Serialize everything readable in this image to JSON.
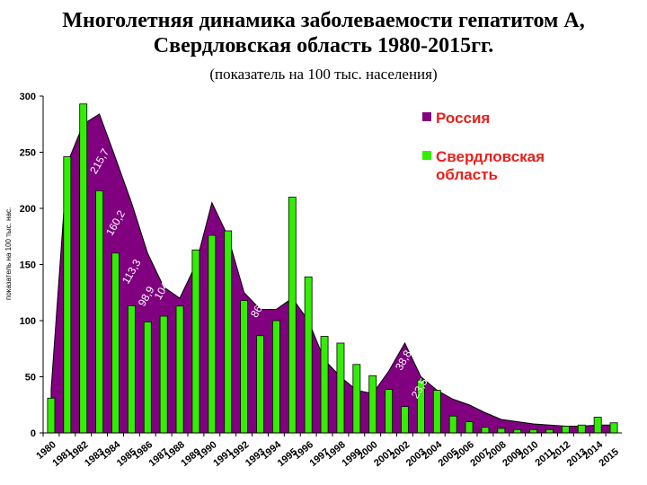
{
  "chart_data": {
    "type": "area+bar",
    "title_line1": "Многолетняя динамика заболеваемости гепатитом А,",
    "title_line2": "Свердловская область 1980-2015гг.",
    "subtitle": "(показатель на 100 тыс. населения)",
    "ylabel": "показатель на 100 тыс. нас.",
    "ylim": [
      0,
      300
    ],
    "yticks": [
      0,
      50,
      100,
      150,
      200,
      250,
      300
    ],
    "categories": [
      "1980",
      "1981",
      "1982",
      "1983",
      "1984",
      "1985",
      "1986",
      "1987",
      "1988",
      "1989",
      "1990",
      "1991",
      "1992",
      "1993",
      "1994",
      "1995",
      "1996",
      "1997",
      "1998",
      "1999",
      "2000",
      "2001",
      "2002",
      "2003",
      "2004",
      "2005",
      "2006",
      "2007",
      "2008",
      "2009",
      "2010",
      "2011",
      "2012",
      "2013",
      "2014",
      "2015"
    ],
    "series": [
      {
        "name": "Россия",
        "type": "area",
        "color": "#800080",
        "values": [
          39,
          240,
          275,
          284,
          245,
          205,
          160,
          130,
          120,
          150,
          205,
          175,
          125,
          110,
          110,
          120,
          100,
          65,
          50,
          38,
          35,
          55,
          80,
          50,
          38,
          30,
          25,
          18,
          12,
          10,
          8,
          7,
          6,
          6,
          7,
          7
        ]
      },
      {
        "name": "Свердловская область",
        "type": "bar",
        "color": "#33ee00",
        "values": [
          31,
          246,
          293,
          215.7,
          160.2,
          113.3,
          98.9,
          104,
          113,
          163,
          176,
          180,
          118,
          86.6,
          100,
          210,
          139,
          86,
          80,
          61,
          51,
          38.8,
          23.5,
          47,
          38,
          15,
          10,
          5,
          4,
          3,
          3,
          3,
          6,
          7,
          14,
          9
        ]
      }
    ],
    "data_labels": [
      "215,7",
      "160,2",
      "113,3",
      "98,9",
      "104",
      "86,6",
      "38,8",
      "23,5"
    ]
  }
}
